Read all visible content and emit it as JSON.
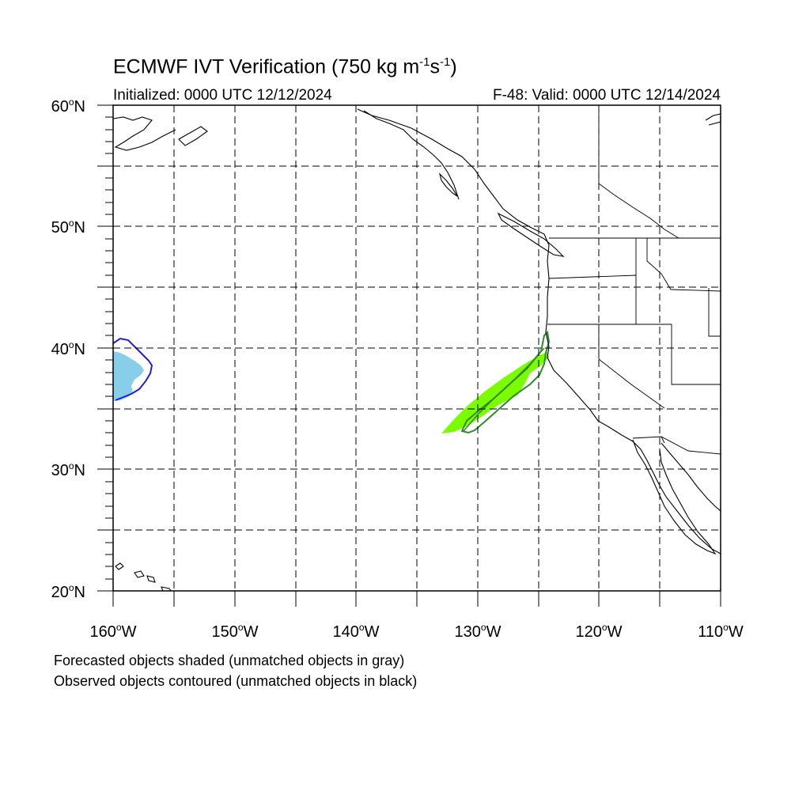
{
  "title": {
    "main": "ECMWF IVT Verification (750 kg m",
    "sup1": "-1",
    "mid": "s",
    "sup2": "-1",
    "close": ")"
  },
  "subtitle": {
    "initialized": "Initialized: 0000 UTC 12/12/2024",
    "valid": "F-48: Valid: 0000 UTC 12/14/2024"
  },
  "axes": {
    "lat_labels": [
      {
        "deg": "60",
        "hem": "N"
      },
      {
        "deg": "50",
        "hem": "N"
      },
      {
        "deg": "40",
        "hem": "N"
      },
      {
        "deg": "30",
        "hem": "N"
      },
      {
        "deg": "20",
        "hem": "N"
      }
    ],
    "lon_labels": [
      {
        "deg": "160",
        "hem": "W"
      },
      {
        "deg": "150",
        "hem": "W"
      },
      {
        "deg": "140",
        "hem": "W"
      },
      {
        "deg": "130",
        "hem": "W"
      },
      {
        "deg": "120",
        "hem": "W"
      },
      {
        "deg": "110",
        "hem": "W"
      }
    ],
    "lat_range": [
      20,
      60
    ],
    "lon_range": [
      -160,
      -110
    ],
    "grid_interval_deg": 5,
    "grid": true
  },
  "notes": {
    "line1": "Forecasted objects shaded (unmatched objects in gray)",
    "line2": "Observed objects contoured (unmatched objects in black)"
  },
  "colors": {
    "object1_fill": "#87ceeb",
    "object1_contour": "#1e1edc",
    "object2_fill": "#7cfc00",
    "object2_contour": "#2e8b2e"
  }
}
